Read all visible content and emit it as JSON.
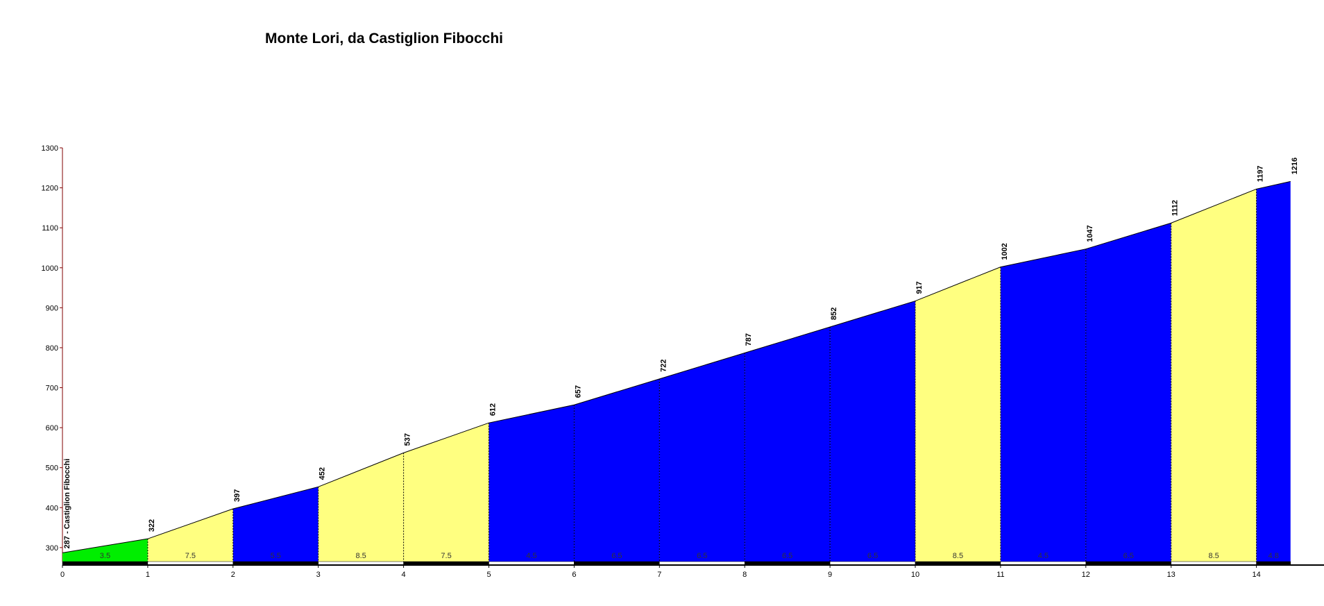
{
  "chart_data": {
    "type": "profile",
    "title": "Monte Lori, da Castiglion Fibocchi",
    "start_label": "287 - Castiglion Fibocchi",
    "x": [
      0,
      1,
      2,
      3,
      4,
      5,
      6,
      7,
      8,
      9,
      10,
      11,
      12,
      13,
      14,
      14.4
    ],
    "values": [
      287,
      322,
      397,
      452,
      537,
      612,
      657,
      722,
      787,
      852,
      917,
      1002,
      1047,
      1112,
      1197,
      1216
    ],
    "gradients": [
      3.5,
      7.5,
      5.5,
      8.5,
      7.5,
      4.5,
      6.5,
      6.5,
      6.5,
      6.5,
      8.5,
      4.5,
      6.5,
      8.5,
      4.8
    ],
    "segment_colors": [
      "#00ee00",
      "#ffff80",
      "#0000ff",
      "#ffff80",
      "#ffff80",
      "#0000ff",
      "#0000ff",
      "#0000ff",
      "#0000ff",
      "#0000ff",
      "#ffff80",
      "#0000ff",
      "#0000ff",
      "#ffff80",
      "#0000ff"
    ],
    "xlim": [
      0,
      14.8
    ],
    "ylim": [
      265,
      1300
    ],
    "xticks": [
      0,
      1,
      2,
      3,
      4,
      5,
      6,
      7,
      8,
      9,
      10,
      11,
      12,
      13,
      14
    ],
    "yticks": [
      300,
      400,
      500,
      600,
      700,
      800,
      900,
      1000,
      1100,
      1200,
      1300
    ]
  }
}
